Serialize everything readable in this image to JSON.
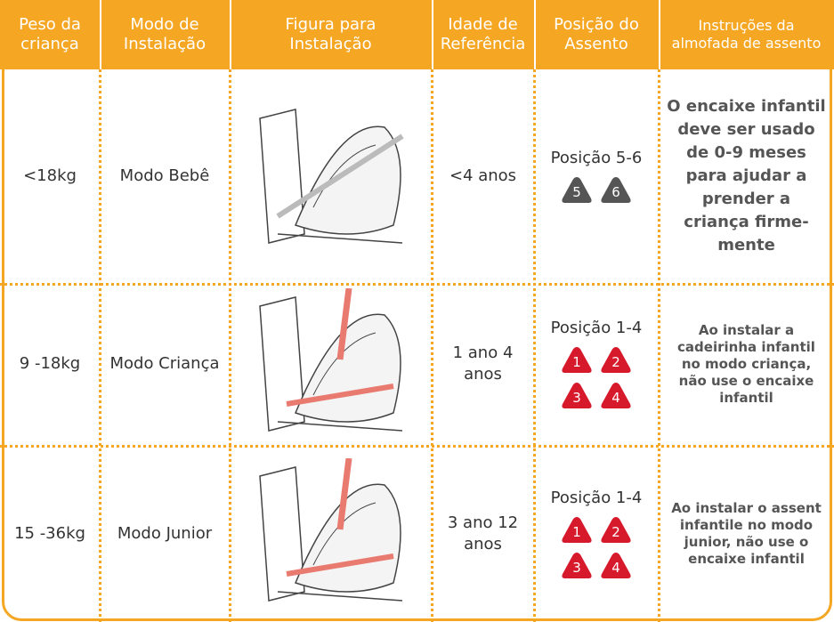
{
  "header": [
    [
      "Peso da",
      "criança"
    ],
    [
      "Modo de",
      "Instalação"
    ],
    [
      "Figura para",
      "Instalação"
    ],
    [
      "Idade de",
      "Referência"
    ],
    [
      "Posição do",
      "Assento"
    ],
    [
      "Instruções da",
      "almofada de assento"
    ]
  ],
  "rows": [
    {
      "weight": [
        "<18kg"
      ],
      "mode": [
        "Modo Bebê"
      ],
      "age": [
        "<4 anos"
      ],
      "position": "Posição 5-6",
      "badges": [
        "5",
        "6"
      ],
      "badge_color": "#555555",
      "instruction": [
        "O encaixe infantil",
        "deve ser usado",
        "de 0-9 meses",
        "para ajudar a",
        "prender a",
        "criança firme-",
        "mente"
      ]
    },
    {
      "weight": [
        "9 -18kg"
      ],
      "mode": [
        "Modo Criança"
      ],
      "age": [
        "1 ano 4",
        "anos"
      ],
      "position": "Posição 1-4",
      "badges": [
        "1",
        "2",
        "3",
        "4"
      ],
      "badge_color": "#d7192c",
      "instruction": [
        "Ao instalar a",
        "cadeirinha infantil",
        "no modo criança,",
        "não use o encaixe",
        "infantil"
      ]
    },
    {
      "weight": [
        "15 -36kg"
      ],
      "mode": [
        "Modo Junior"
      ],
      "age": [
        "3 ano 12",
        "anos"
      ],
      "position": "Posição 1-4",
      "badges": [
        "1",
        "2",
        "3",
        "4"
      ],
      "badge_color": "#d7192c",
      "instruction": [
        "Ao instalar o assent",
        "infantile no modo",
        "junior, não use o",
        "encaixe infantil"
      ]
    }
  ]
}
